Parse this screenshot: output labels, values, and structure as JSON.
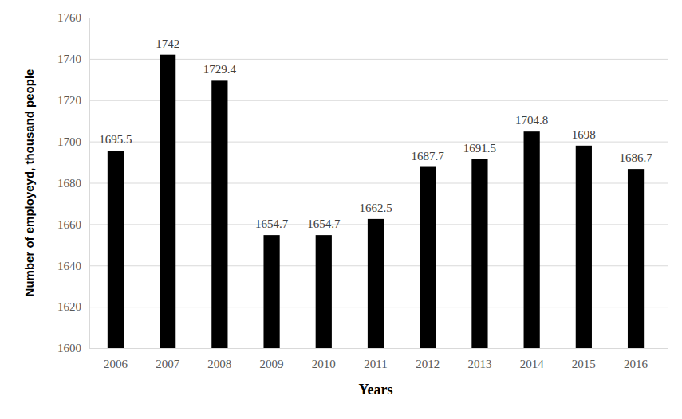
{
  "chart_data": {
    "type": "bar",
    "x_label": "Years",
    "y_label": "Number of employeyd, thousand people",
    "categories": [
      "2006",
      "2007",
      "2008",
      "2009",
      "2010",
      "2011",
      "2012",
      "2013",
      "2014",
      "2015",
      "2016"
    ],
    "values": [
      1695.5,
      1742,
      1729.4,
      1654.7,
      1654.7,
      1662.5,
      1687.7,
      1691.5,
      1704.8,
      1698,
      1686.7
    ],
    "color": "#000000",
    "ylim": [
      1600,
      1760
    ],
    "yticks": [
      1600,
      1620,
      1640,
      1660,
      1680,
      1700,
      1720,
      1740,
      1760
    ],
    "grid": true,
    "data_labels": true
  }
}
